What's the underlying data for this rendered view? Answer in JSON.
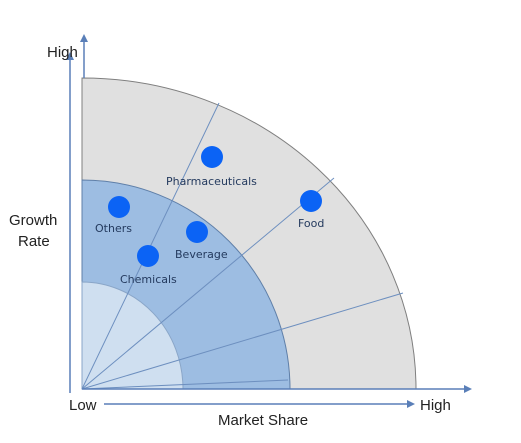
{
  "axes": {
    "y_high": "High",
    "y_title_line1": "Growth",
    "y_title_line2": "Rate",
    "x_low": "Low",
    "x_high": "High",
    "x_title": "Market Share"
  },
  "colors": {
    "outer_ring": "#e0e0e0",
    "middle_ring": "#9dbde2",
    "inner_ring": "#cfdff0",
    "point": "#0b63f5",
    "axis": "#5a7fb8",
    "edge": "#7f7f7f"
  },
  "points": [
    {
      "label": "Pharmaceuticals"
    },
    {
      "label": "Food"
    },
    {
      "label": "Others"
    },
    {
      "label": "Beverage"
    },
    {
      "label": "Chemicals"
    }
  ]
}
